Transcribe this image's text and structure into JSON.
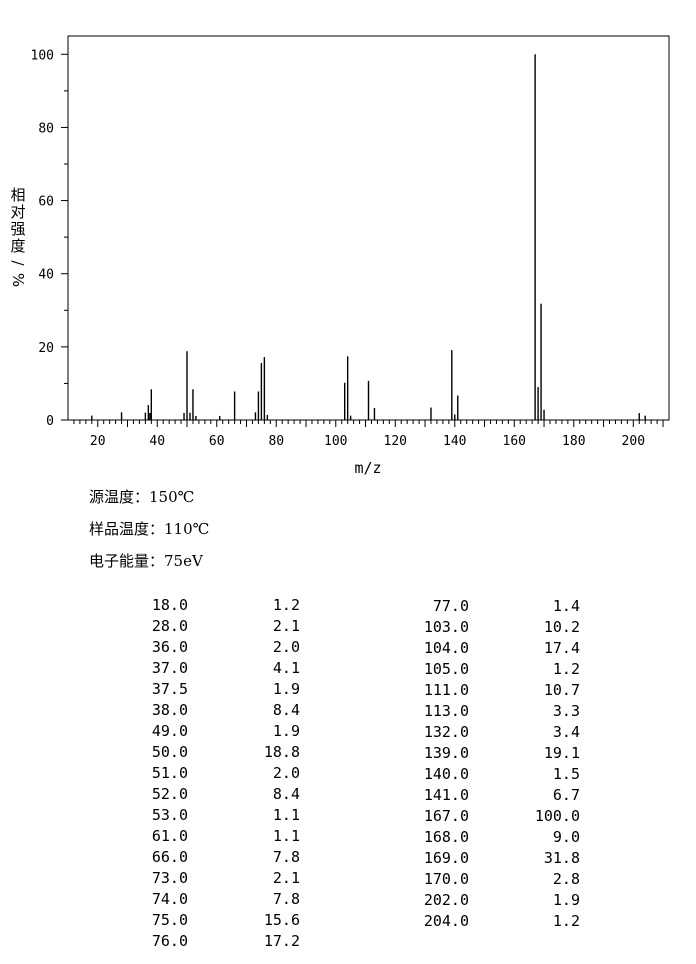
{
  "chart_data": {
    "type": "bar",
    "xlabel": "m/z",
    "ylabel": "相对强度/%",
    "xlim": [
      10,
      212
    ],
    "ylim": [
      0,
      105
    ],
    "xticks": [
      20,
      40,
      60,
      80,
      100,
      120,
      140,
      160,
      180,
      200
    ],
    "yticks": [
      0,
      20,
      40,
      60,
      80,
      100
    ],
    "grid": false,
    "peaks": [
      {
        "mz": 18.0,
        "intensity": 1.2
      },
      {
        "mz": 28.0,
        "intensity": 2.1
      },
      {
        "mz": 36.0,
        "intensity": 2.0
      },
      {
        "mz": 37.0,
        "intensity": 4.1
      },
      {
        "mz": 37.5,
        "intensity": 1.9
      },
      {
        "mz": 38.0,
        "intensity": 8.4
      },
      {
        "mz": 49.0,
        "intensity": 1.9
      },
      {
        "mz": 50.0,
        "intensity": 18.8
      },
      {
        "mz": 51.0,
        "intensity": 2.0
      },
      {
        "mz": 52.0,
        "intensity": 8.4
      },
      {
        "mz": 53.0,
        "intensity": 1.1
      },
      {
        "mz": 61.0,
        "intensity": 1.1
      },
      {
        "mz": 66.0,
        "intensity": 7.8
      },
      {
        "mz": 73.0,
        "intensity": 2.1
      },
      {
        "mz": 74.0,
        "intensity": 7.8
      },
      {
        "mz": 75.0,
        "intensity": 15.6
      },
      {
        "mz": 76.0,
        "intensity": 17.2
      },
      {
        "mz": 77.0,
        "intensity": 1.4
      },
      {
        "mz": 103.0,
        "intensity": 10.2
      },
      {
        "mz": 104.0,
        "intensity": 17.4
      },
      {
        "mz": 105.0,
        "intensity": 1.2
      },
      {
        "mz": 111.0,
        "intensity": 10.7
      },
      {
        "mz": 113.0,
        "intensity": 3.3
      },
      {
        "mz": 132.0,
        "intensity": 3.4
      },
      {
        "mz": 139.0,
        "intensity": 19.1
      },
      {
        "mz": 140.0,
        "intensity": 1.5
      },
      {
        "mz": 141.0,
        "intensity": 6.7
      },
      {
        "mz": 167.0,
        "intensity": 100.0
      },
      {
        "mz": 168.0,
        "intensity": 9.0
      },
      {
        "mz": 169.0,
        "intensity": 31.8
      },
      {
        "mz": 170.0,
        "intensity": 2.8
      },
      {
        "mz": 202.0,
        "intensity": 1.9
      },
      {
        "mz": 204.0,
        "intensity": 1.2
      }
    ]
  },
  "conditions": {
    "source_temp": "源温度：150℃",
    "sample_temp": "样品温度：110℃",
    "electron_energy": "电子能量：75eV"
  },
  "table": {
    "left": [
      [
        "18.0",
        "1.2"
      ],
      [
        "28.0",
        "2.1"
      ],
      [
        "36.0",
        "2.0"
      ],
      [
        "37.0",
        "4.1"
      ],
      [
        "37.5",
        "1.9"
      ],
      [
        "38.0",
        "8.4"
      ],
      [
        "49.0",
        "1.9"
      ],
      [
        "50.0",
        "18.8"
      ],
      [
        "51.0",
        "2.0"
      ],
      [
        "52.0",
        "8.4"
      ],
      [
        "53.0",
        "1.1"
      ],
      [
        "61.0",
        "1.1"
      ],
      [
        "66.0",
        "7.8"
      ],
      [
        "73.0",
        "2.1"
      ],
      [
        "74.0",
        "7.8"
      ],
      [
        "75.0",
        "15.6"
      ],
      [
        "76.0",
        "17.2"
      ]
    ],
    "right": [
      [
        "77.0",
        "1.4"
      ],
      [
        "103.0",
        "10.2"
      ],
      [
        "104.0",
        "17.4"
      ],
      [
        "105.0",
        "1.2"
      ],
      [
        "111.0",
        "10.7"
      ],
      [
        "113.0",
        "3.3"
      ],
      [
        "132.0",
        "3.4"
      ],
      [
        "139.0",
        "19.1"
      ],
      [
        "140.0",
        "1.5"
      ],
      [
        "141.0",
        "6.7"
      ],
      [
        "167.0",
        "100.0"
      ],
      [
        "168.0",
        "9.0"
      ],
      [
        "169.0",
        "31.8"
      ],
      [
        "170.0",
        "2.8"
      ],
      [
        "202.0",
        "1.9"
      ],
      [
        "204.0",
        "1.2"
      ]
    ]
  }
}
